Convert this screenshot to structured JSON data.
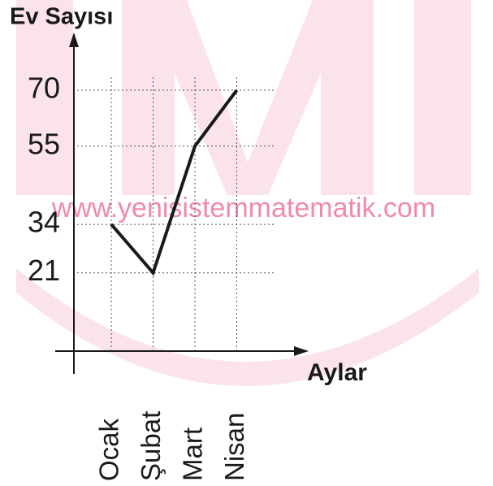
{
  "watermark": "www.yenisistemmatematik.com",
  "chart_data": {
    "type": "line",
    "y_label": "Ev Sayısı",
    "x_label": "Aylar",
    "categories": [
      "Ocak",
      "Şubat",
      "Mart",
      "Nisan"
    ],
    "values": [
      34,
      21,
      55,
      70
    ],
    "color": "#1a1a1a",
    "ylim": [
      0,
      75
    ],
    "yticks": [
      21,
      34,
      55,
      70
    ],
    "grid": true
  }
}
